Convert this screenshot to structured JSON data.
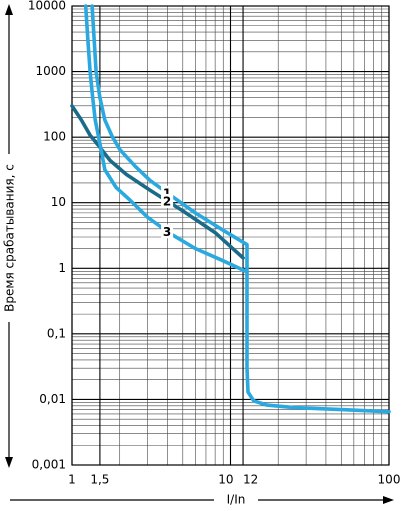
{
  "chart_data": {
    "type": "line",
    "xlabel": "I/In",
    "ylabel": "Время срабатывания, с",
    "log_x": true,
    "log_y": true,
    "grid": true,
    "xlim": [
      1,
      100
    ],
    "ylim": [
      0.001,
      10000
    ],
    "xticks": [
      1,
      {
        "value": 1.5,
        "label": "1,5"
      },
      10,
      12,
      100
    ],
    "yticks": [
      {
        "value": 0.001,
        "label": "0,001"
      },
      {
        "value": 0.01,
        "label": "0,01"
      },
      {
        "value": 0.1,
        "label": "0,1"
      },
      1,
      10,
      100,
      1000,
      10000
    ],
    "series": [
      {
        "name": "1",
        "color": "#29a9e0",
        "x": [
          1.34,
          1.38,
          1.42,
          1.5,
          1.61,
          1.8,
          2.01,
          2.5,
          3.1,
          4,
          6,
          9,
          12.7,
          12.7,
          12.9,
          14,
          17,
          25,
          50,
          100
        ],
        "values": [
          10000,
          3000,
          1000,
          400,
          183,
          100,
          64,
          36,
          22,
          14,
          7,
          3.8,
          2.3,
          0.03,
          0.013,
          0.0095,
          0.0082,
          0.0075,
          0.007,
          0.0065
        ]
      },
      {
        "name": "2",
        "color": "#1a6b8a",
        "x": [
          1,
          1.15,
          1.3,
          1.5,
          1.74,
          2.2,
          3.1,
          5,
          8,
          12
        ],
        "values": [
          300,
          180,
          107,
          70,
          44,
          27,
          15.6,
          7.5,
          3.5,
          1.44
        ]
      },
      {
        "name": "3",
        "color": "#29a9e0",
        "x": [
          1.22,
          1.26,
          1.3,
          1.35,
          1.4,
          1.5,
          1.61,
          1.9,
          2.32,
          3,
          4.15,
          6,
          9,
          12.7
        ],
        "values": [
          10000,
          3000,
          1000,
          400,
          183,
          80,
          32,
          17,
          11,
          6,
          3.4,
          2,
          1.3,
          0.88
        ]
      }
    ]
  }
}
